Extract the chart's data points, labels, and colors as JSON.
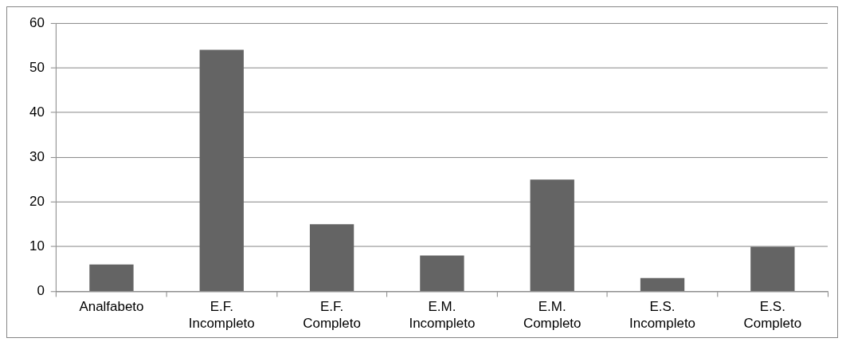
{
  "chart_data": {
    "type": "bar",
    "categories": [
      "Analfabeto",
      "E.F. Incompleto",
      "E.F. Completo",
      "E.M. Incompleto",
      "E.M. Completo",
      "E.S. Incompleto",
      "E.S. Completo"
    ],
    "values": [
      6,
      54,
      15,
      8,
      25,
      3,
      10
    ],
    "color": "#646464",
    "ylim": [
      0,
      60
    ],
    "yticks": [
      0,
      10,
      20,
      30,
      40,
      50,
      60
    ],
    "grid": "y",
    "legend": false
  }
}
